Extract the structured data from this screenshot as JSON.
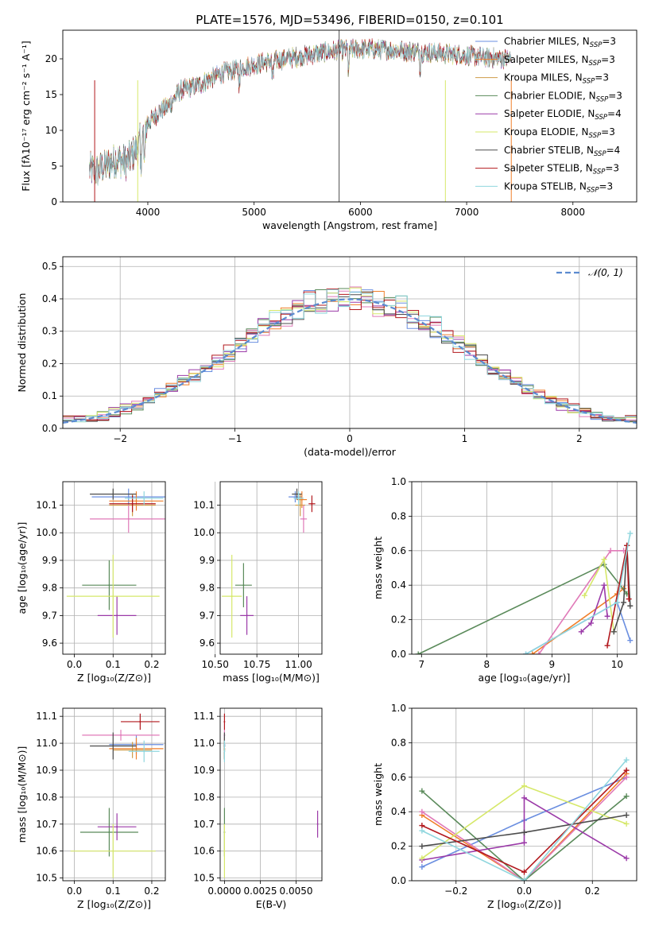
{
  "figure_title": "PLATE=1576, MJD=53496, FIBERID=0150, z=0.101",
  "chart_data": [
    {
      "id": "spectrum",
      "type": "line",
      "xlabel": "wavelength [Angstrom, rest frame]",
      "ylabel": "Flux [fλ10⁻¹⁷ erg cm⁻² s⁻¹ A⁻¹]",
      "xlim": [
        3200,
        8600
      ],
      "ylim": [
        0,
        24
      ],
      "xticks": [
        4000,
        5000,
        6000,
        7000,
        8000
      ],
      "yticks": [
        0,
        5,
        10,
        15,
        20
      ],
      "grid": false,
      "legend_position": "top-right",
      "x_range": [
        3450,
        7420
      ],
      "continuum": {
        "x": [
          3450,
          3500,
          3600,
          3700,
          3800,
          3900,
          4000,
          4100,
          4200,
          4300,
          4500,
          4700,
          4900,
          5100,
          5300,
          5500,
          5700,
          5900,
          6100,
          6300,
          6500,
          6700,
          6900,
          7100,
          7300,
          7420
        ],
        "y": [
          4.5,
          4.2,
          5.0,
          6.0,
          5.5,
          7.5,
          11.0,
          12.5,
          13.5,
          15.5,
          16.5,
          18.0,
          18.8,
          19.5,
          20.0,
          20.5,
          21.0,
          21.3,
          21.4,
          21.2,
          21.0,
          20.8,
          20.6,
          20.3,
          20.1,
          20.0
        ]
      },
      "series": [
        {
          "name": "Chabrier MILES, N",
          "sub": "SSP",
          "suffix": "=3",
          "color": "#6a8ee0"
        },
        {
          "name": "Salpeter MILES, N",
          "sub": "SSP",
          "suffix": "=3",
          "color": "#f07f2a"
        },
        {
          "name": "Kroupa MILES, N",
          "sub": "SSP",
          "suffix": "=3",
          "color": "#ce9c47"
        },
        {
          "name": "Chabrier ELODIE, N",
          "sub": "SSP",
          "suffix": "=3",
          "color": "#5a8a5a"
        },
        {
          "name": "Salpeter ELODIE, N",
          "sub": "SSP",
          "suffix": "=4",
          "color": "#9b3aa8"
        },
        {
          "name": "Kroupa ELODIE, N",
          "sub": "SSP",
          "suffix": "=3",
          "color": "#d6e86a"
        },
        {
          "name": "Chabrier STELIB, N",
          "sub": "SSP",
          "suffix": "=4",
          "color": "#4d4d4d"
        },
        {
          "name": "Salpeter STELIB, N",
          "sub": "SSP",
          "suffix": "=3",
          "color": "#b2181d"
        },
        {
          "name": "Kroupa STELIB, N",
          "sub": "SSP",
          "suffix": "=3",
          "color": "#8fd6de"
        }
      ]
    },
    {
      "id": "residuals",
      "type": "histogram",
      "xlabel": "(data-model)/error",
      "ylabel": "Normed distribution",
      "xlim": [
        -2.5,
        2.5
      ],
      "ylim": [
        0,
        0.53
      ],
      "xticks": [
        -2,
        -1,
        0,
        1,
        2
      ],
      "yticks": [
        0.0,
        0.1,
        0.2,
        0.3,
        0.4,
        0.5
      ],
      "grid": true,
      "legend_position": "top-right",
      "bin_width": 0.1,
      "reference_curve": {
        "name": "𝒩(0, 1)",
        "color": "#5b8bd0",
        "style": "dashed"
      },
      "series_colors": [
        "#6a8ee0",
        "#f07f2a",
        "#e07ab8",
        "#5a8a5a",
        "#9b3aa8",
        "#d6e86a",
        "#4d4d4d",
        "#b2181d",
        "#8fd6de"
      ]
    },
    {
      "id": "age_vs_Z",
      "type": "scatter",
      "xlabel": "Z [log₁₀(Z/Z⊙)]",
      "ylabel": "age  [log₁₀(age/yr)]",
      "xlim": [
        -0.03,
        0.235
      ],
      "ylim": [
        9.56,
        10.185
      ],
      "xticks": [
        0.0,
        0.1,
        0.2
      ],
      "yticks": [
        9.6,
        9.7,
        9.8,
        9.9,
        10.0,
        10.1
      ],
      "grid": true,
      "points": [
        {
          "x": 0.14,
          "xerr": 0.095,
          "y": 10.13,
          "yerr": 0.03,
          "color": "#6a8ee0"
        },
        {
          "x": 0.16,
          "xerr": 0.07,
          "y": 10.115,
          "yerr": 0.035,
          "color": "#f07f2a"
        },
        {
          "x": 0.15,
          "xerr": 0.06,
          "y": 10.1,
          "yerr": 0.04,
          "color": "#ce9c47"
        },
        {
          "x": 0.14,
          "xerr": 0.1,
          "y": 10.05,
          "yerr": 0.05,
          "color": "#e07ab8"
        },
        {
          "x": 0.09,
          "xerr": 0.07,
          "y": 9.81,
          "yerr": 0.09,
          "color": "#5a8a5a"
        },
        {
          "x": 0.11,
          "xerr": 0.05,
          "y": 9.7,
          "yerr": 0.07,
          "color": "#9b3aa8"
        },
        {
          "x": 0.1,
          "xerr": 0.12,
          "y": 9.77,
          "yerr": 0.15,
          "color": "#d6e86a"
        },
        {
          "x": 0.1,
          "xerr": 0.06,
          "y": 10.14,
          "yerr": 0.02,
          "color": "#4d4d4d"
        },
        {
          "x": 0.15,
          "xerr": 0.06,
          "y": 10.105,
          "yerr": 0.03,
          "color": "#b2181d"
        },
        {
          "x": 0.18,
          "xerr": 0.05,
          "y": 10.125,
          "yerr": 0.025,
          "color": "#8fd6de"
        }
      ]
    },
    {
      "id": "age_vs_mass",
      "type": "scatter",
      "xlabel": "mass [log₁₀(M/M⊙)]",
      "ylabel": "",
      "xlim": [
        10.53,
        11.14
      ],
      "ylim": [
        9.56,
        10.185
      ],
      "xticks": [
        10.5,
        10.75,
        11.0
      ],
      "yticks": [
        9.6,
        9.7,
        9.8,
        9.9,
        10.0,
        10.1
      ],
      "grid": true,
      "points": [
        {
          "x": 10.98,
          "xerr": 0.04,
          "y": 10.13,
          "yerr": 0.02,
          "color": "#6a8ee0"
        },
        {
          "x": 11.02,
          "xerr": 0.03,
          "y": 10.12,
          "yerr": 0.03,
          "color": "#f07f2a"
        },
        {
          "x": 11.01,
          "xerr": 0.03,
          "y": 10.1,
          "yerr": 0.04,
          "color": "#ce9c47"
        },
        {
          "x": 11.03,
          "xerr": 0.02,
          "y": 10.05,
          "yerr": 0.05,
          "color": "#e07ab8"
        },
        {
          "x": 10.67,
          "xerr": 0.05,
          "y": 9.81,
          "yerr": 0.08,
          "color": "#5a8a5a"
        },
        {
          "x": 10.69,
          "xerr": 0.04,
          "y": 9.7,
          "yerr": 0.07,
          "color": "#9b3aa8"
        },
        {
          "x": 10.6,
          "xerr": 0.06,
          "y": 9.77,
          "yerr": 0.15,
          "color": "#d6e86a"
        },
        {
          "x": 10.99,
          "xerr": 0.03,
          "y": 10.14,
          "yerr": 0.02,
          "color": "#4d4d4d"
        },
        {
          "x": 11.08,
          "xerr": 0.02,
          "y": 10.105,
          "yerr": 0.03,
          "color": "#b2181d"
        },
        {
          "x": 11.0,
          "xerr": 0.03,
          "y": 10.125,
          "yerr": 0.025,
          "color": "#8fd6de"
        }
      ]
    },
    {
      "id": "weight_vs_age",
      "type": "line",
      "xlabel": "age  [log₁₀(age/yr)]",
      "ylabel": "mass weight",
      "xlim": [
        6.85,
        10.3
      ],
      "ylim": [
        0,
        1.0
      ],
      "xticks": [
        7,
        8,
        9,
        10
      ],
      "yticks": [
        0.0,
        0.2,
        0.4,
        0.6,
        0.8,
        1.0
      ],
      "grid": true,
      "series": [
        {
          "color": "#6a8ee0",
          "points": [
            [
              8.6,
              0.0
            ],
            [
              10.0,
              0.3
            ],
            [
              10.2,
              0.08
            ]
          ]
        },
        {
          "color": "#f07f2a",
          "points": [
            [
              8.7,
              0.0
            ],
            [
              10.0,
              0.35
            ],
            [
              10.1,
              0.38
            ]
          ]
        },
        {
          "color": "#e07ab8",
          "points": [
            [
              8.8,
              0.0
            ],
            [
              9.9,
              0.6
            ],
            [
              10.1,
              0.6
            ]
          ]
        },
        {
          "color": "#5a8a5a",
          "points": [
            [
              6.95,
              0.0
            ],
            [
              9.8,
              0.52
            ],
            [
              10.15,
              0.35
            ]
          ]
        },
        {
          "color": "#9b3aa8",
          "points": [
            [
              9.45,
              0.13
            ],
            [
              9.6,
              0.18
            ],
            [
              9.8,
              0.4
            ],
            [
              9.85,
              0.22
            ]
          ]
        },
        {
          "color": "#d6e86a",
          "points": [
            [
              9.5,
              0.34
            ],
            [
              9.8,
              0.55
            ],
            [
              9.95,
              0.13
            ]
          ]
        },
        {
          "color": "#4d4d4d",
          "points": [
            [
              9.95,
              0.13
            ],
            [
              10.1,
              0.3
            ],
            [
              10.15,
              0.63
            ],
            [
              10.2,
              0.28
            ]
          ]
        },
        {
          "color": "#b2181d",
          "points": [
            [
              9.85,
              0.05
            ],
            [
              10.15,
              0.63
            ],
            [
              10.18,
              0.32
            ]
          ]
        },
        {
          "color": "#8fd6de",
          "points": [
            [
              8.6,
              0.0
            ],
            [
              10.0,
              0.3
            ],
            [
              10.2,
              0.7
            ]
          ]
        }
      ]
    },
    {
      "id": "mass_vs_Z",
      "type": "scatter",
      "xlabel": "Z [log₁₀(Z/Z⊙)]",
      "ylabel": "mass [log₁₀(M/M⊙)]",
      "xlim": [
        -0.03,
        0.235
      ],
      "ylim": [
        10.49,
        11.13
      ],
      "xticks": [
        0.0,
        0.1,
        0.2
      ],
      "yticks": [
        10.5,
        10.6,
        10.7,
        10.8,
        10.9,
        11.0,
        11.1
      ],
      "grid": true,
      "points": [
        {
          "x": 0.16,
          "xerr": 0.07,
          "y": 10.995,
          "yerr": 0.035,
          "color": "#6a8ee0"
        },
        {
          "x": 0.16,
          "xerr": 0.07,
          "y": 10.98,
          "yerr": 0.04,
          "color": "#f07f2a"
        },
        {
          "x": 0.15,
          "xerr": 0.05,
          "y": 10.975,
          "yerr": 0.03,
          "color": "#ce9c47"
        },
        {
          "x": 0.12,
          "xerr": 0.1,
          "y": 11.03,
          "yerr": 0.02,
          "color": "#e07ab8"
        },
        {
          "x": 0.09,
          "xerr": 0.075,
          "y": 10.67,
          "yerr": 0.09,
          "color": "#5a8a5a"
        },
        {
          "x": 0.11,
          "xerr": 0.05,
          "y": 10.69,
          "yerr": 0.05,
          "color": "#9b3aa8"
        },
        {
          "x": 0.1,
          "xerr": 0.11,
          "y": 10.6,
          "yerr": 0.1,
          "color": "#d6e86a"
        },
        {
          "x": 0.1,
          "xerr": 0.06,
          "y": 10.99,
          "yerr": 0.05,
          "color": "#4d4d4d"
        },
        {
          "x": 0.17,
          "xerr": 0.05,
          "y": 11.08,
          "yerr": 0.03,
          "color": "#b2181d"
        },
        {
          "x": 0.18,
          "xerr": 0.04,
          "y": 10.97,
          "yerr": 0.04,
          "color": "#8fd6de"
        }
      ]
    },
    {
      "id": "mass_vs_ebv",
      "type": "scatter",
      "xlabel": "E(B-V)",
      "ylabel": "",
      "xlim": [
        -0.0003,
        0.0068
      ],
      "ylim": [
        10.49,
        11.13
      ],
      "xticks": [
        0.0,
        0.0025,
        0.005
      ],
      "xtick_labels": [
        "0.0000",
        "0.0025",
        "0.0050"
      ],
      "yticks": [
        10.5,
        10.6,
        10.7,
        10.8,
        10.9,
        11.0,
        11.1
      ],
      "grid": true,
      "points": [
        {
          "x": 0.0,
          "y": 10.995,
          "yerr": 0.035,
          "color": "#6a8ee0"
        },
        {
          "x": 0.0,
          "y": 10.98,
          "yerr": 0.04,
          "color": "#f07f2a"
        },
        {
          "x": 0.0,
          "y": 10.975,
          "yerr": 0.03,
          "color": "#ce9c47"
        },
        {
          "x": 0.0,
          "y": 11.03,
          "yerr": 0.02,
          "color": "#e07ab8"
        },
        {
          "x": 0.0,
          "y": 10.67,
          "yerr": 0.09,
          "color": "#5a8a5a"
        },
        {
          "x": 0.0065,
          "y": 10.7,
          "yerr": 0.05,
          "color": "#9b3aa8"
        },
        {
          "x": 0.0,
          "y": 10.6,
          "yerr": 0.1,
          "color": "#d6e86a"
        },
        {
          "x": 0.0,
          "y": 10.99,
          "yerr": 0.05,
          "color": "#4d4d4d"
        },
        {
          "x": 0.0,
          "y": 11.08,
          "yerr": 0.03,
          "color": "#b2181d"
        },
        {
          "x": 0.0,
          "y": 10.97,
          "yerr": 0.04,
          "color": "#8fd6de"
        }
      ]
    },
    {
      "id": "weight_vs_Z",
      "type": "line",
      "xlabel": "Z [log₁₀(Z/Z⊙)]",
      "ylabel": "mass weight",
      "xlim": [
        -0.33,
        0.33
      ],
      "ylim": [
        0,
        1.0
      ],
      "xticks": [
        -0.2,
        0.0,
        0.2
      ],
      "xtick_labels": [
        "−0.2",
        "0.0",
        "0.2"
      ],
      "yticks": [
        0.0,
        0.2,
        0.4,
        0.6,
        0.8,
        1.0
      ],
      "grid": true,
      "series": [
        {
          "color": "#6a8ee0",
          "points": [
            [
              -0.3,
              0.08
            ],
            [
              0.0,
              0.35
            ],
            [
              0.3,
              0.6
            ]
          ]
        },
        {
          "color": "#f07f2a",
          "points": [
            [
              -0.3,
              0.38
            ],
            [
              0.0,
              0.0
            ],
            [
              0.3,
              0.62
            ]
          ]
        },
        {
          "color": "#e07ab8",
          "points": [
            [
              -0.3,
              0.4
            ],
            [
              0.0,
              0.0
            ],
            [
              0.3,
              0.6
            ]
          ]
        },
        {
          "color": "#5a8a5a",
          "points": [
            [
              -0.3,
              0.52
            ],
            [
              0.0,
              0.0
            ],
            [
              0.3,
              0.49
            ]
          ]
        },
        {
          "color": "#9b3aa8",
          "points": [
            [
              -0.3,
              0.12
            ],
            [
              0.0,
              0.22
            ],
            [
              0.0,
              0.48
            ],
            [
              0.3,
              0.13
            ]
          ]
        },
        {
          "color": "#d6e86a",
          "points": [
            [
              -0.3,
              0.13
            ],
            [
              0.0,
              0.55
            ],
            [
              0.3,
              0.33
            ]
          ]
        },
        {
          "color": "#4d4d4d",
          "points": [
            [
              -0.3,
              0.2
            ],
            [
              0.0,
              0.28
            ],
            [
              0.3,
              0.38
            ]
          ]
        },
        {
          "color": "#b2181d",
          "points": [
            [
              -0.3,
              0.32
            ],
            [
              0.0,
              0.05
            ],
            [
              0.3,
              0.64
            ]
          ]
        },
        {
          "color": "#8fd6de",
          "points": [
            [
              -0.3,
              0.29
            ],
            [
              0.0,
              0.0
            ],
            [
              0.3,
              0.7
            ]
          ]
        }
      ]
    }
  ]
}
